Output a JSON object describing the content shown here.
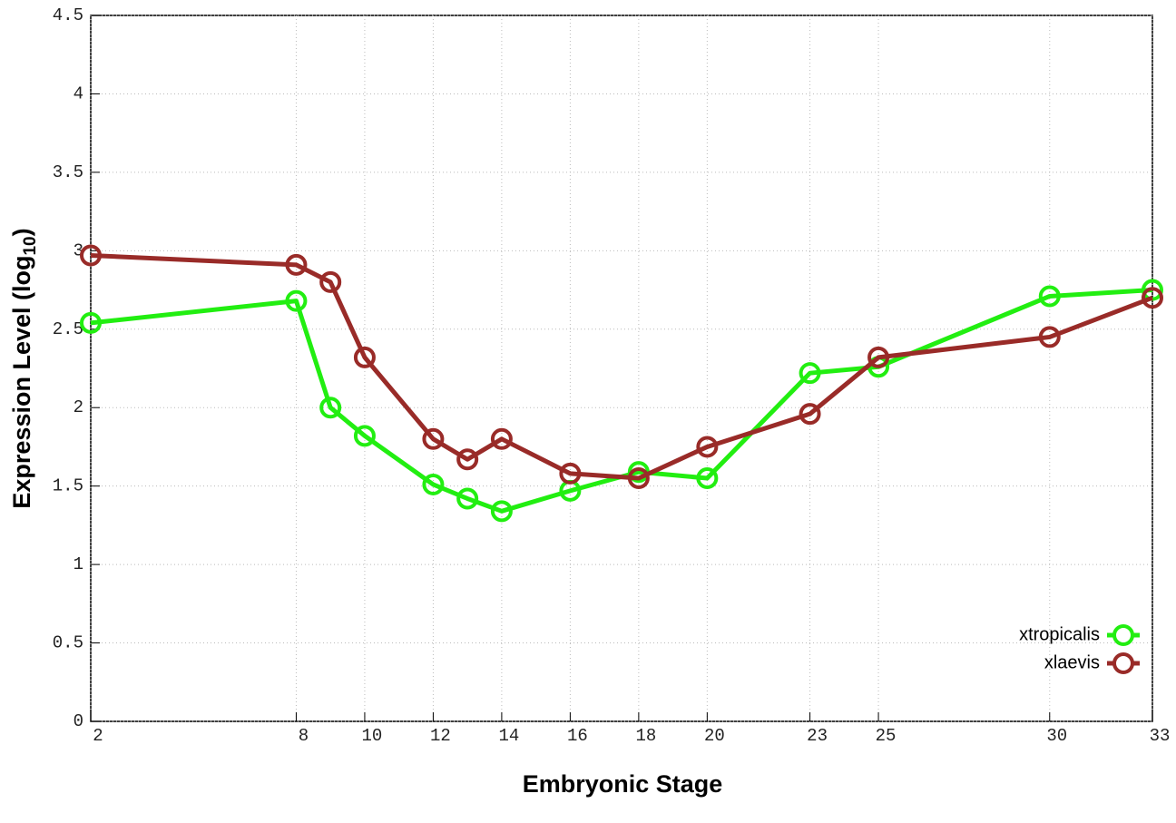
{
  "chart_data": {
    "type": "line",
    "x": [
      2,
      8,
      9,
      10,
      12,
      13,
      14,
      16,
      18,
      20,
      23,
      25,
      30,
      33
    ],
    "series": [
      {
        "name": "xtropicalis",
        "color": "#22ee11",
        "values": [
          2.54,
          2.68,
          2.0,
          1.82,
          1.51,
          1.42,
          1.34,
          1.47,
          1.59,
          1.55,
          2.22,
          2.26,
          2.71,
          2.75
        ]
      },
      {
        "name": "xlaevis",
        "color": "#992b28",
        "values": [
          2.97,
          2.91,
          2.8,
          2.32,
          1.8,
          1.67,
          1.8,
          1.58,
          1.55,
          1.75,
          1.96,
          2.32,
          2.45,
          2.7
        ]
      }
    ],
    "xlabel": "Embryonic Stage",
    "ylabel": [
      "Expression Level (log",
      "10",
      ")"
    ],
    "xlim": [
      2,
      33
    ],
    "xticks": [
      2,
      8,
      10,
      12,
      14,
      16,
      18,
      20,
      23,
      25,
      30,
      33
    ],
    "ylim": [
      0,
      4.5
    ],
    "yticks": [
      0,
      0.5,
      1,
      1.5,
      2,
      2.5,
      3,
      3.5,
      4,
      4.5
    ],
    "grid": true,
    "legend": "lower right"
  }
}
